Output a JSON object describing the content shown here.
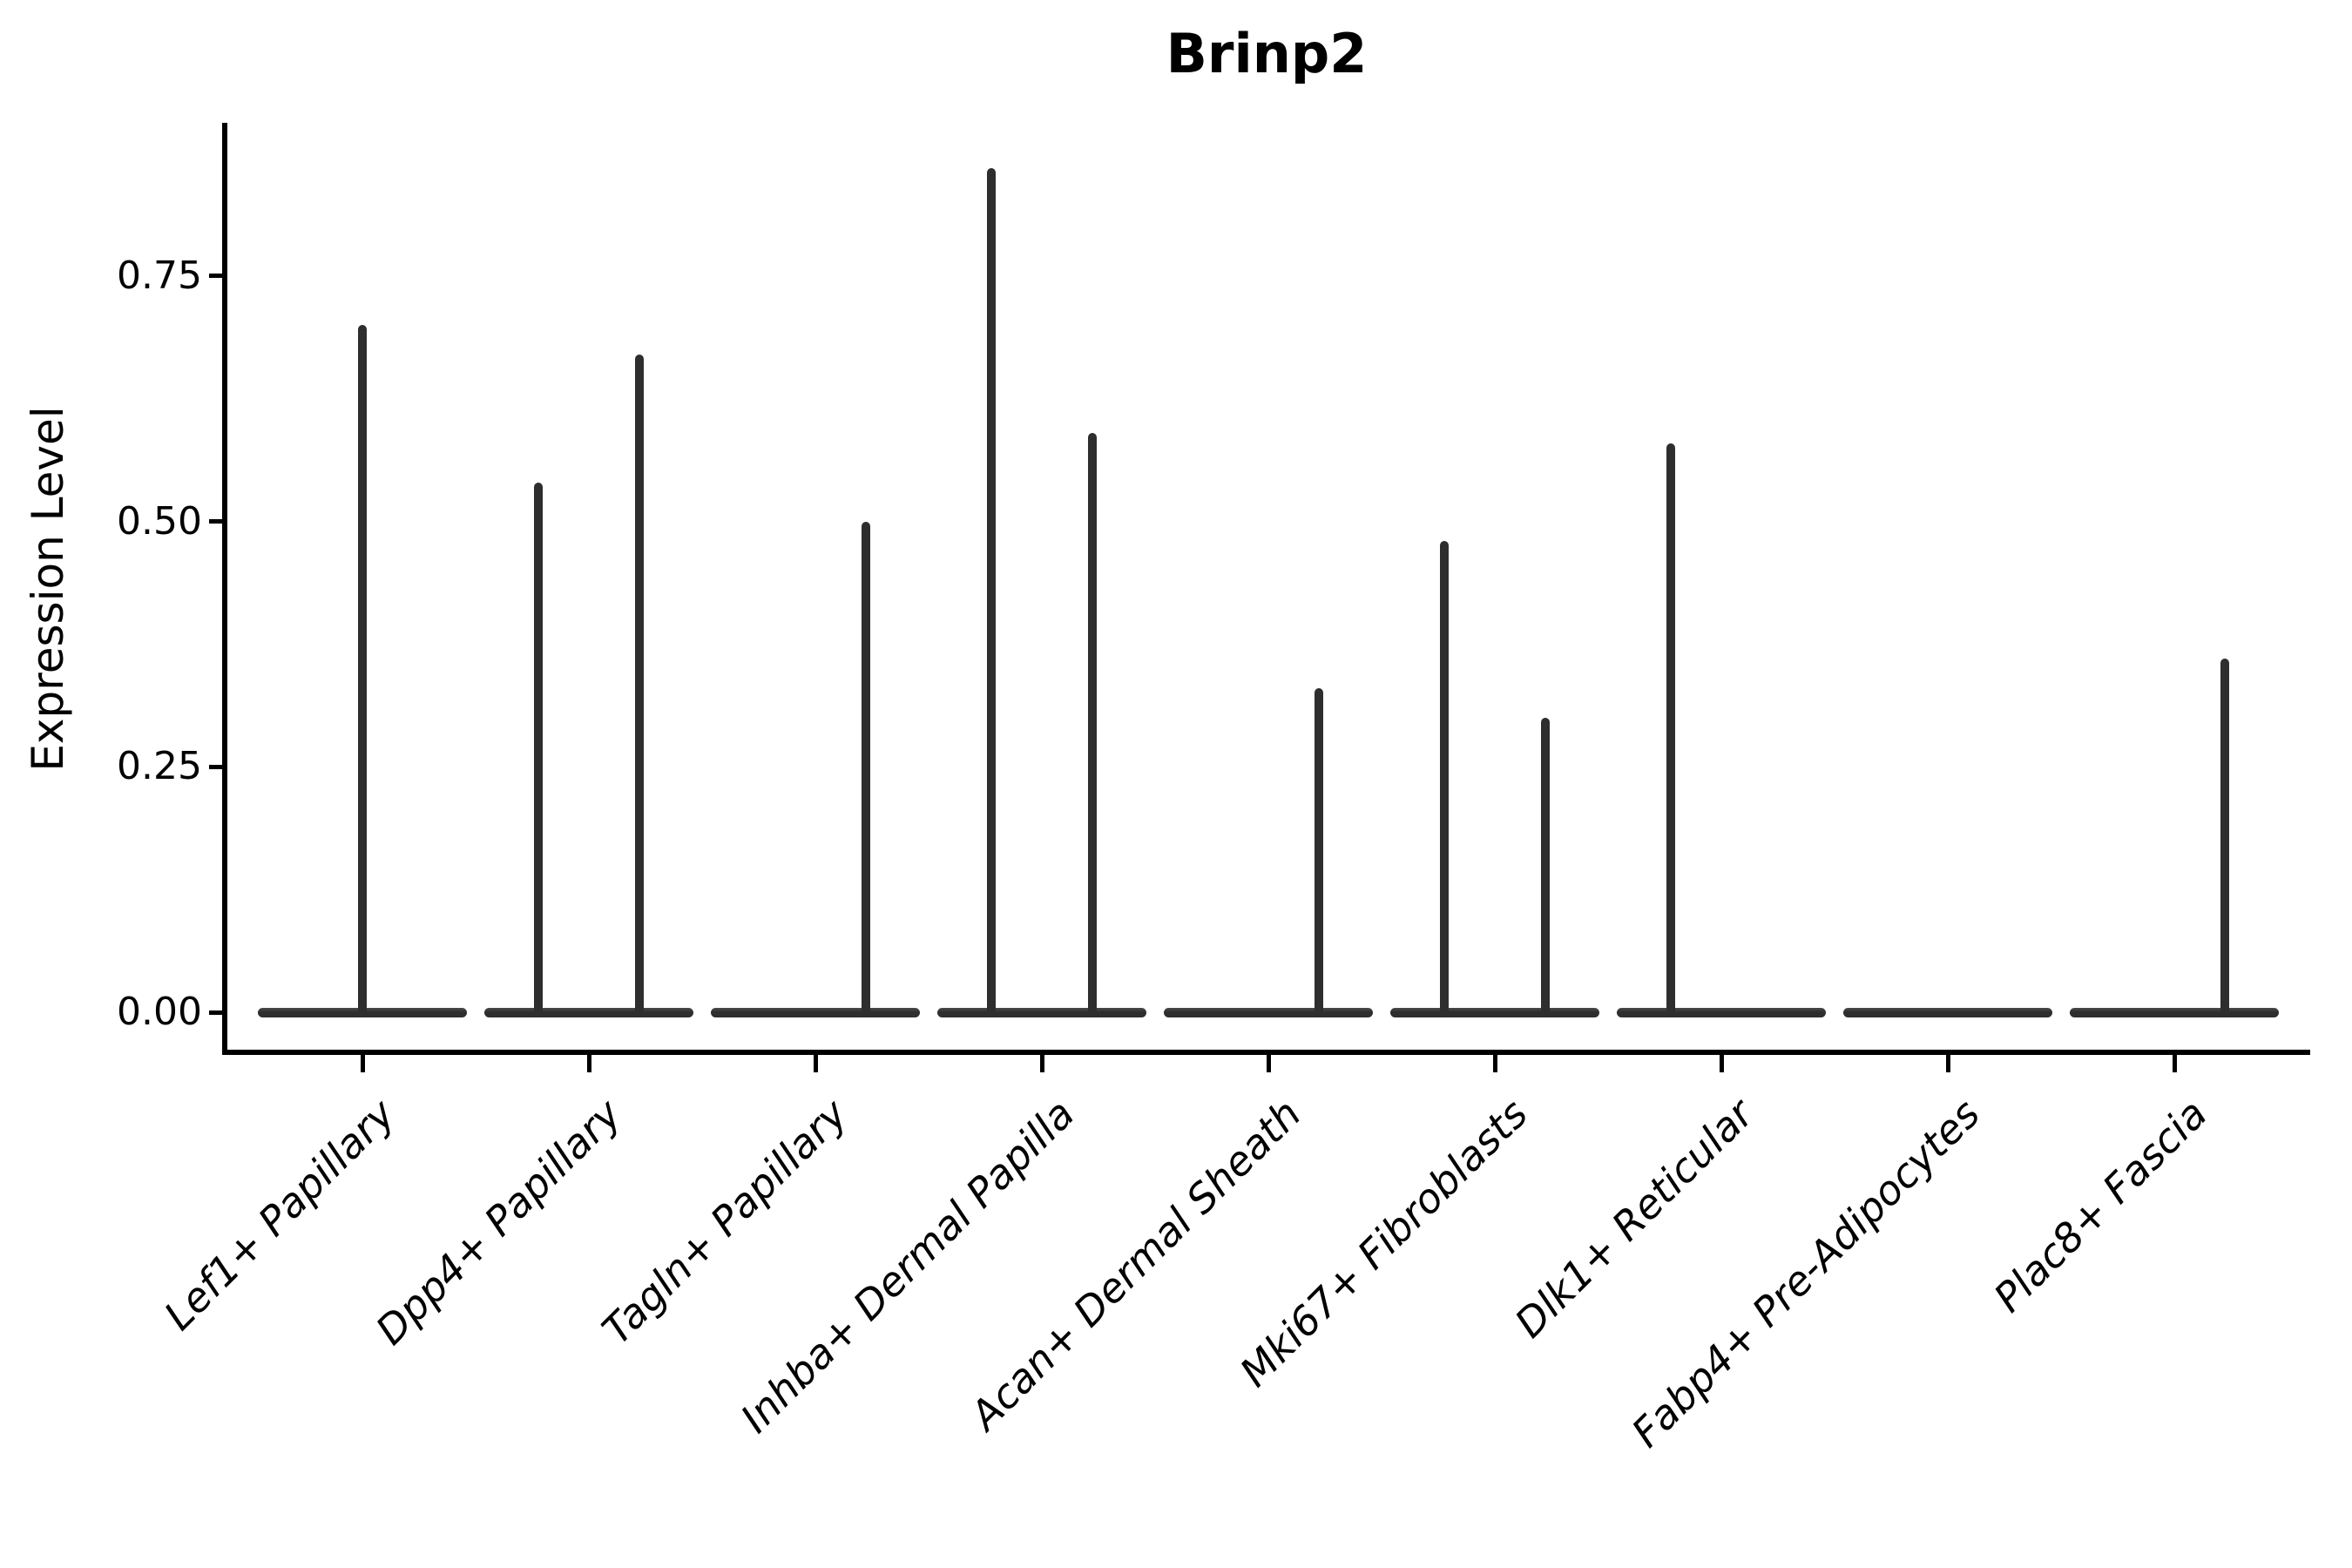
{
  "title": "Brinp2",
  "ylabel": "Expression Level",
  "chart_data": {
    "type": "violin",
    "title": "Brinp2",
    "xlabel": "",
    "ylabel": "Expression Level",
    "ylim": [
      0,
      0.91
    ],
    "ytick_labels": [
      "0.00",
      "0.25",
      "0.50",
      "0.75"
    ],
    "ytick_values": [
      0,
      0.25,
      0.5,
      0.75
    ],
    "grid": false,
    "legend": "none",
    "violin_color": "#2e2e2e",
    "axis_color": "#000000",
    "background_color": "#ffffff",
    "description": "Zero-inflated violins: each cell type shows a flattened violin body at expression 0 with thin density spikes reaching the maximum nonzero expression values.",
    "categories": [
      {
        "label": "Lef1+ Papillary",
        "spikes": [
          {
            "side": "center",
            "value": 0.7
          }
        ]
      },
      {
        "label": "Dpp4+ Papillary",
        "spikes": [
          {
            "side": "left",
            "value": 0.54
          },
          {
            "side": "right",
            "value": 0.67
          }
        ]
      },
      {
        "label": "Tagln+ Papillary",
        "spikes": [
          {
            "side": "right",
            "value": 0.5
          }
        ]
      },
      {
        "label": "Inhba+ Dermal Papilla",
        "spikes": [
          {
            "side": "left",
            "value": 0.86
          },
          {
            "side": "right",
            "value": 0.59
          }
        ]
      },
      {
        "label": "Acan+ Dermal Sheath",
        "spikes": [
          {
            "side": "right",
            "value": 0.33
          }
        ]
      },
      {
        "label": "Mki67+ Fibroblasts",
        "spikes": [
          {
            "side": "left",
            "value": 0.48
          },
          {
            "side": "right",
            "value": 0.3
          }
        ]
      },
      {
        "label": "Dlk1+ Reticular",
        "spikes": [
          {
            "side": "left",
            "value": 0.58
          }
        ]
      },
      {
        "label": "Fabp4+ Pre-Adipocytes",
        "spikes": []
      },
      {
        "label": "Plac8+ Fascia",
        "spikes": [
          {
            "side": "right",
            "value": 0.36
          }
        ]
      }
    ]
  }
}
